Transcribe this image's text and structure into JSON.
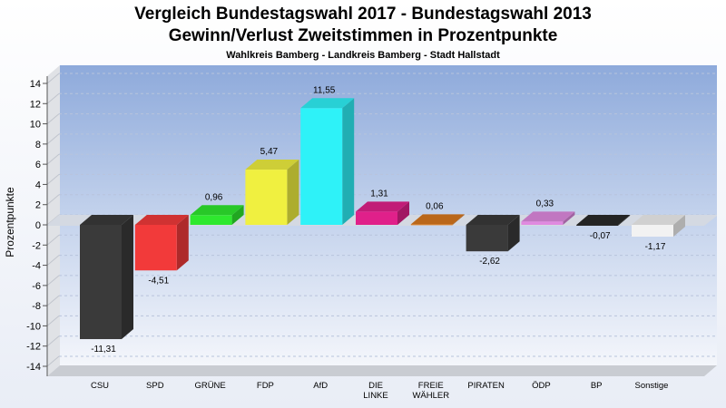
{
  "title": "Vergleich Bundestagswahl 2017 - Bundestagswahl 2013",
  "subtitle": "Gewinn/Verlust Zweitstimmen in Prozentpunkte",
  "caption": "Wahlkreis Bamberg - Landkreis Bamberg - Stadt Hallstadt",
  "chart_data": {
    "type": "bar",
    "title": "Vergleich Bundestagswahl 2017 - Bundestagswahl 2013",
    "subtitle": "Gewinn/Verlust Zweitstimmen in Prozentpunkte",
    "xlabel": "",
    "ylabel": "Prozentpunkte",
    "ylim": [
      -14,
      14
    ],
    "yticks": [
      14,
      12,
      10,
      8,
      6,
      4,
      2,
      0,
      -2,
      -4,
      -6,
      -8,
      -10,
      -12,
      -14
    ],
    "grid": true,
    "categories": [
      "CSU",
      "SPD",
      "GRÜNE",
      "FDP",
      "AfD",
      "DIE\nLINKE",
      "FREIE\nWÄHLER",
      "PIRATEN",
      "ÖDP",
      "BP",
      "Sonstige"
    ],
    "values": [
      -11.31,
      -4.51,
      0.96,
      5.47,
      11.55,
      1.31,
      0.06,
      -2.62,
      0.33,
      -0.07,
      -1.17
    ],
    "value_labels": [
      "-11,31",
      "-4,51",
      "0,96",
      "5,47",
      "11,55",
      "1,31",
      "0,06",
      "-2,62",
      "0,33",
      "-0,07",
      "-1,17"
    ],
    "colors": [
      "#3a3a3a",
      "#f23a3a",
      "#2ee82e",
      "#f0f040",
      "#2ef2f8",
      "#e0208a",
      "#d8781e",
      "#3a3a3a",
      "#e08ae0",
      "#2a2a2a",
      "#f2f2f2"
    ]
  }
}
